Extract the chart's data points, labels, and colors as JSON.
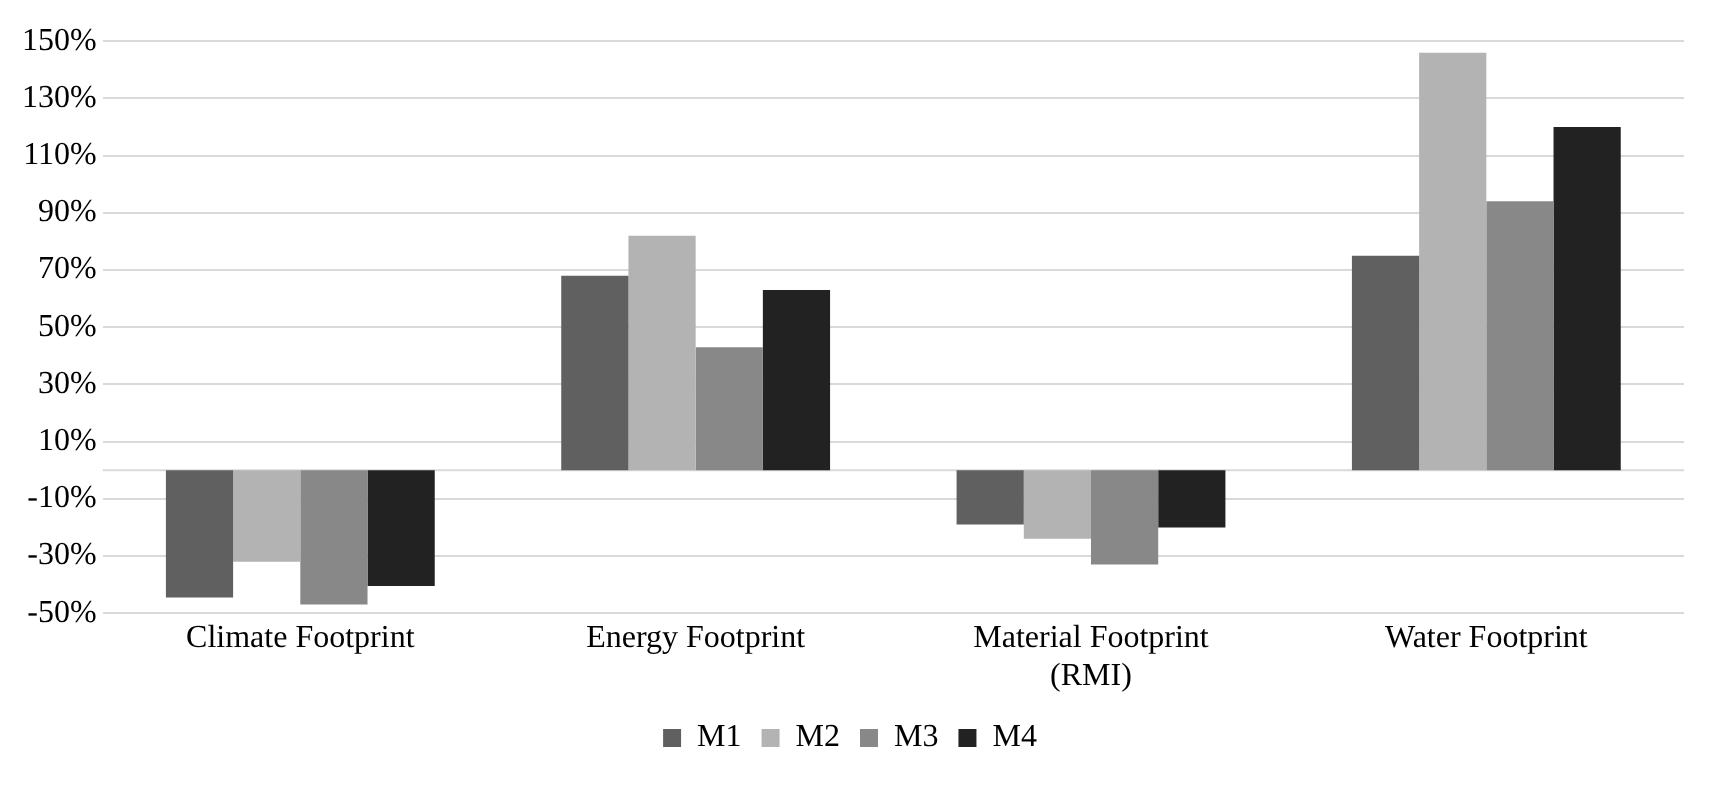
{
  "chart_data": {
    "type": "bar",
    "categories": [
      "Climate Footprint",
      "Energy Footprint",
      "Material Footprint (RMI)",
      "Water Footprint"
    ],
    "series": [
      {
        "name": "M1",
        "color": "#606060",
        "values": [
          -44.5,
          68,
          -19,
          75
        ]
      },
      {
        "name": "M2",
        "color": "#b3b3b3",
        "values": [
          -32,
          82,
          -24,
          146
        ]
      },
      {
        "name": "M3",
        "color": "#888888",
        "values": [
          -47,
          43,
          -33,
          94
        ]
      },
      {
        "name": "M4",
        "color": "#222222",
        "values": [
          -40.5,
          63,
          -20,
          120
        ]
      }
    ],
    "ylim": [
      -50,
      150
    ],
    "yticks": [
      {
        "value": -50,
        "label": "-50%"
      },
      {
        "value": -30,
        "label": "-30%"
      },
      {
        "value": -10,
        "label": "-10%"
      },
      {
        "value": 10,
        "label": "10%"
      },
      {
        "value": 30,
        "label": "30%"
      },
      {
        "value": 50,
        "label": "50%"
      },
      {
        "value": 70,
        "label": "70%"
      },
      {
        "value": 90,
        "label": "90%"
      },
      {
        "value": 110,
        "label": "110%"
      },
      {
        "value": 130,
        "label": "130%"
      },
      {
        "value": 150,
        "label": "150%"
      }
    ],
    "grid": "y",
    "legend": "bottom"
  }
}
